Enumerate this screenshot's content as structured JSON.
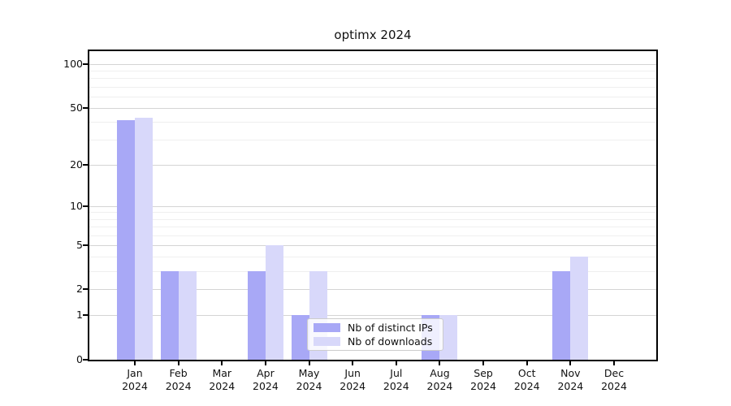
{
  "title": "optimx 2024",
  "chart_data": {
    "type": "bar",
    "title": "optimx 2024",
    "categories": [
      "Jan",
      "Feb",
      "Mar",
      "Apr",
      "May",
      "Jun",
      "Jul",
      "Aug",
      "Sep",
      "Oct",
      "Nov",
      "Dec"
    ],
    "year_label": "2024",
    "series": [
      {
        "name": "Nb of distinct IPs",
        "color": "#a8a8f6",
        "values": [
          41,
          3,
          0,
          3,
          1,
          0,
          0,
          1,
          0,
          0,
          3,
          0
        ]
      },
      {
        "name": "Nb of downloads",
        "color": "#d8d8fa",
        "values": [
          43,
          3,
          0,
          5,
          3,
          0,
          0,
          1,
          0,
          0,
          4,
          0
        ]
      }
    ],
    "y_axis": {
      "scale": "log1p",
      "range": [
        0,
        100
      ],
      "ticks": [
        0,
        1,
        2,
        5,
        10,
        20,
        50,
        100
      ],
      "minor_ticks": [
        3,
        4,
        6,
        7,
        8,
        9,
        30,
        40,
        60,
        70,
        80,
        90
      ]
    },
    "xlabel": "",
    "ylabel": "",
    "grid": true,
    "legend_position": "lower-center"
  },
  "colors": {
    "grid_major": "#d4d4d4",
    "grid_minor": "#efefef",
    "spine": "#000000",
    "text": "#111111",
    "legend_border": "#cccccc"
  }
}
